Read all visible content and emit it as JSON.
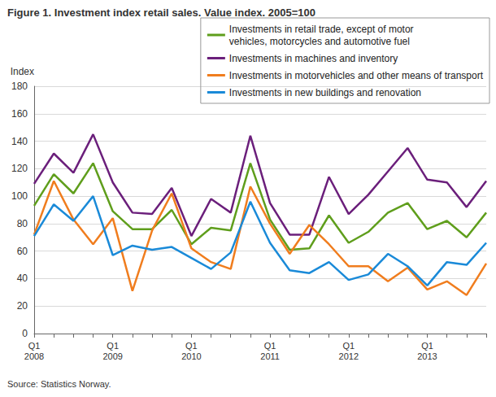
{
  "chart_data": {
    "type": "line",
    "title": "Figure 1. Investment index retail sales. Value index. 2005=100",
    "y_label": "Index",
    "source": "Source: Statistics Norway.",
    "categories": [
      "Q1\n2008",
      null,
      null,
      null,
      "Q1\n2009",
      null,
      null,
      null,
      "Q1\n2010",
      null,
      null,
      null,
      "Q1\n2011",
      null,
      null,
      null,
      "Q1\n2012",
      null,
      null,
      null,
      "Q1\n2013",
      null,
      null,
      null
    ],
    "series": [
      {
        "name": "Investments in retail trade, except of motor\nvehicles, motorcycles and automotive fuel",
        "color": "#5f9e1c",
        "values": [
          93,
          116,
          102,
          124,
          89,
          76,
          76,
          90,
          65,
          77,
          75,
          124,
          83,
          61,
          62,
          86,
          66,
          74,
          88,
          95,
          76,
          82,
          70,
          88
        ]
      },
      {
        "name": "Investments in machines and inventory",
        "color": "#6b1f7b",
        "values": [
          109,
          131,
          117,
          145,
          110,
          88,
          87,
          106,
          71,
          98,
          88,
          144,
          95,
          72,
          72,
          114,
          87,
          101,
          118,
          135,
          112,
          110,
          92,
          111
        ]
      },
      {
        "name": "Investments in motorvehicles and other means of transport",
        "color": "#f07d1e",
        "values": [
          72,
          111,
          83,
          65,
          84,
          31,
          75,
          102,
          62,
          52,
          47,
          107,
          80,
          58,
          79,
          65,
          49,
          49,
          38,
          48,
          32,
          38,
          28,
          51
        ]
      },
      {
        "name": "Investments in new buildings and renovation",
        "color": "#1a8ad8",
        "values": [
          71,
          94,
          82,
          100,
          57,
          64,
          61,
          63,
          55,
          47,
          59,
          96,
          66,
          46,
          44,
          52,
          39,
          43,
          58,
          49,
          35,
          52,
          50,
          66
        ]
      }
    ],
    "ylim": [
      0,
      180
    ],
    "yticks": [
      0,
      20,
      40,
      60,
      80,
      100,
      120,
      140,
      160,
      180
    ],
    "grid": true,
    "legend": "top-right"
  }
}
